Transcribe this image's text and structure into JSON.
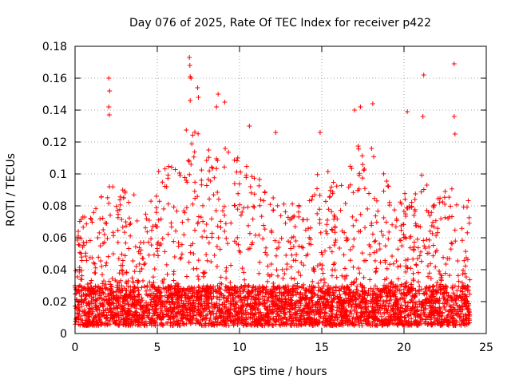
{
  "chart_data": {
    "type": "scatter",
    "title": "Day 076 of 2025, Rate Of TEC Index for receiver p422",
    "xlabel": "GPS time / hours",
    "ylabel": "ROTI / TECUs",
    "xlim": [
      0,
      25
    ],
    "ylim": [
      0,
      0.18
    ],
    "xticks": [
      0,
      5,
      10,
      15,
      20,
      25
    ],
    "yticks": [
      0,
      0.02,
      0.04,
      0.06,
      0.08,
      0.1,
      0.12,
      0.14,
      0.16,
      0.18
    ],
    "xtick_labels": [
      "0",
      "5",
      "10",
      "15",
      "20",
      "25"
    ],
    "ytick_labels": [
      "0",
      "0.02",
      "0.04",
      "0.06",
      "0.08",
      "0.1",
      "0.12",
      "0.14",
      "0.16",
      "0.18"
    ],
    "grid": true,
    "marker": "+",
    "color": "#ff0000",
    "data_time_range_hours": [
      0,
      24
    ],
    "envelope": {
      "x": [
        0,
        0.5,
        1,
        1.5,
        2,
        2.5,
        3,
        3.5,
        4,
        4.5,
        5,
        5.5,
        6,
        6.5,
        7,
        7.5,
        8,
        8.5,
        9,
        9.5,
        10,
        10.5,
        11,
        11.5,
        12,
        12.5,
        13,
        13.5,
        14,
        14.5,
        15,
        15.5,
        16,
        16.5,
        17,
        17.5,
        18,
        18.5,
        19,
        19.5,
        20,
        20.5,
        21,
        21.5,
        22,
        22.5,
        23,
        23.5,
        24
      ],
      "typical_max": [
        0.07,
        0.08,
        0.08,
        0.085,
        0.095,
        0.09,
        0.09,
        0.1,
        0.08,
        0.085,
        0.1,
        0.11,
        0.105,
        0.12,
        0.135,
        0.13,
        0.115,
        0.12,
        0.125,
        0.11,
        0.115,
        0.12,
        0.1,
        0.095,
        0.09,
        0.085,
        0.08,
        0.09,
        0.095,
        0.1,
        0.11,
        0.1,
        0.1,
        0.095,
        0.12,
        0.115,
        0.12,
        0.11,
        0.095,
        0.085,
        0.09,
        0.085,
        0.1,
        0.095,
        0.085,
        0.09,
        0.1,
        0.1,
        0.08
      ]
    },
    "outliers": [
      {
        "x": 2.05,
        "y": 0.16
      },
      {
        "x": 2.1,
        "y": 0.152
      },
      {
        "x": 2.05,
        "y": 0.142
      },
      {
        "x": 2.08,
        "y": 0.137
      },
      {
        "x": 6.95,
        "y": 0.173
      },
      {
        "x": 6.98,
        "y": 0.168
      },
      {
        "x": 7.0,
        "y": 0.161
      },
      {
        "x": 7.05,
        "y": 0.16
      },
      {
        "x": 7.45,
        "y": 0.154
      },
      {
        "x": 7.5,
        "y": 0.148
      },
      {
        "x": 7.0,
        "y": 0.146
      },
      {
        "x": 8.7,
        "y": 0.15
      },
      {
        "x": 9.1,
        "y": 0.145
      },
      {
        "x": 8.6,
        "y": 0.142
      },
      {
        "x": 17.0,
        "y": 0.14
      },
      {
        "x": 17.35,
        "y": 0.142
      },
      {
        "x": 18.1,
        "y": 0.144
      },
      {
        "x": 20.2,
        "y": 0.139
      },
      {
        "x": 21.2,
        "y": 0.162
      },
      {
        "x": 21.15,
        "y": 0.136
      },
      {
        "x": 23.05,
        "y": 0.169
      },
      {
        "x": 23.05,
        "y": 0.136
      },
      {
        "x": 23.1,
        "y": 0.125
      },
      {
        "x": 14.9,
        "y": 0.126
      },
      {
        "x": 12.2,
        "y": 0.126
      },
      {
        "x": 10.6,
        "y": 0.13
      }
    ]
  }
}
